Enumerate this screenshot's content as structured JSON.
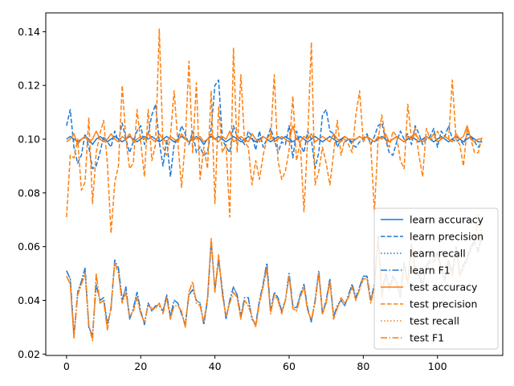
{
  "chart_data": {
    "type": "line",
    "title": "",
    "xlabel": "",
    "ylabel": "",
    "xlim": [
      -5.6,
      117.6
    ],
    "ylim": [
      0.0195,
      0.147
    ],
    "x_ticks": [
      0,
      20,
      40,
      60,
      80,
      100
    ],
    "y_ticks": [
      0.02,
      0.04,
      0.06,
      0.08,
      0.1,
      0.12,
      0.14
    ],
    "x_tick_labels": [
      "0",
      "20",
      "40",
      "60",
      "80",
      "100"
    ],
    "y_tick_labels": [
      "0.02",
      "0.04",
      "0.06",
      "0.08",
      "0.10",
      "0.12",
      "0.14"
    ],
    "grid": false,
    "legend_position": "lower-right",
    "legend": [
      {
        "label": "learn accuracy",
        "color": "#1f77d4",
        "dash": "solid"
      },
      {
        "label": "learn precision",
        "color": "#1f77d4",
        "dash": "dashed"
      },
      {
        "label": "learn recall",
        "color": "#1f77d4",
        "dash": "dotted"
      },
      {
        "label": "learn F1",
        "color": "#1f77d4",
        "dash": "dashdot"
      },
      {
        "label": "test accuracy",
        "color": "#ff7f0e",
        "dash": "solid"
      },
      {
        "label": "test precision",
        "color": "#ff7f0e",
        "dash": "dashed"
      },
      {
        "label": "test recall",
        "color": "#ff7f0e",
        "dash": "dotted"
      },
      {
        "label": "test F1",
        "color": "#ff7f0e",
        "dash": "dashdot"
      }
    ],
    "x": [
      0,
      1,
      2,
      3,
      4,
      5,
      6,
      7,
      8,
      9,
      10,
      11,
      12,
      13,
      14,
      15,
      16,
      17,
      18,
      19,
      20,
      21,
      22,
      23,
      24,
      25,
      26,
      27,
      28,
      29,
      30,
      31,
      32,
      33,
      34,
      35,
      36,
      37,
      38,
      39,
      40,
      41,
      42,
      43,
      44,
      45,
      46,
      47,
      48,
      49,
      50,
      51,
      52,
      53,
      54,
      55,
      56,
      57,
      58,
      59,
      60,
      61,
      62,
      63,
      64,
      65,
      66,
      67,
      68,
      69,
      70,
      71,
      72,
      73,
      74,
      75,
      76,
      77,
      78,
      79,
      80,
      81,
      82,
      83,
      84,
      85,
      86,
      87,
      88,
      89,
      90,
      91,
      92,
      93,
      94,
      95,
      96,
      97,
      98,
      99,
      100,
      101,
      102,
      103,
      104,
      105,
      106,
      107,
      108,
      109,
      110,
      111,
      112
    ],
    "series": [
      {
        "name": "learn accuracy",
        "color": "#1f77d4",
        "dash": "solid",
        "values": [
          0.1,
          0.101,
          0.1,
          0.099,
          0.1,
          0.101,
          0.1,
          0.098,
          0.1,
          0.101,
          0.1,
          0.099,
          0.1,
          0.101,
          0.1,
          0.099,
          0.1,
          0.101,
          0.1,
          0.099,
          0.1,
          0.101,
          0.1,
          0.101,
          0.1,
          0.099,
          0.1,
          0.101,
          0.1,
          0.099,
          0.1,
          0.101,
          0.1,
          0.099,
          0.1,
          0.101,
          0.1,
          0.098,
          0.1,
          0.101,
          0.1,
          0.101,
          0.1,
          0.099,
          0.1,
          0.101,
          0.1,
          0.099,
          0.1,
          0.101,
          0.1,
          0.099,
          0.1,
          0.101,
          0.1,
          0.099,
          0.1,
          0.101,
          0.1,
          0.101,
          0.1,
          0.099,
          0.1,
          0.101,
          0.1,
          0.099,
          0.1,
          0.101,
          0.1,
          0.099,
          0.1,
          0.101,
          0.1,
          0.099,
          0.1,
          0.101,
          0.1,
          0.099,
          0.1,
          0.101,
          0.1,
          0.101,
          0.1,
          0.099,
          0.1,
          0.101,
          0.1,
          0.099,
          0.1,
          0.101,
          0.1,
          0.099,
          0.1,
          0.101,
          0.1,
          0.099,
          0.1,
          0.101,
          0.1,
          0.099,
          0.1,
          0.101,
          0.1,
          0.099,
          0.1,
          0.101,
          0.1,
          0.099,
          0.1,
          0.101,
          0.1,
          0.099,
          0.099
        ]
      },
      {
        "name": "learn precision",
        "color": "#1f77d4",
        "dash": "dashed",
        "values": [
          0.105,
          0.111,
          0.097,
          0.091,
          0.094,
          0.102,
          0.097,
          0.089,
          0.09,
          0.095,
          0.101,
          0.099,
          0.097,
          0.103,
          0.099,
          0.106,
          0.1,
          0.095,
          0.099,
          0.103,
          0.105,
          0.098,
          0.102,
          0.109,
          0.113,
          0.099,
          0.09,
          0.1,
          0.086,
          0.098,
          0.1,
          0.105,
          0.102,
          0.098,
          0.103,
          0.095,
          0.097,
          0.094,
          0.095,
          0.104,
          0.12,
          0.122,
          0.1,
          0.097,
          0.095,
          0.105,
          0.101,
          0.1,
          0.098,
          0.103,
          0.101,
          0.096,
          0.103,
          0.097,
          0.1,
          0.104,
          0.1,
          0.095,
          0.099,
          0.098,
          0.105,
          0.093,
          0.103,
          0.098,
          0.095,
          0.103,
          0.1,
          0.089,
          0.095,
          0.109,
          0.111,
          0.103,
          0.102,
          0.097,
          0.1,
          0.099,
          0.1,
          0.098,
          0.097,
          0.099,
          0.1,
          0.102,
          0.098,
          0.101,
          0.105,
          0.106,
          0.1,
          0.095,
          0.094,
          0.099,
          0.103,
          0.1,
          0.102,
          0.098,
          0.105,
          0.102,
          0.098,
          0.1,
          0.101,
          0.104,
          0.097,
          0.103,
          0.101,
          0.105,
          0.1,
          0.099,
          0.1,
          0.098,
          0.102,
          0.101,
          0.099,
          0.097,
          0.099
        ]
      },
      {
        "name": "learn recall",
        "color": "#1f77d4",
        "dash": "dotted",
        "values": [
          0.051,
          0.048,
          0.027,
          0.043,
          0.047,
          0.052,
          0.03,
          0.027,
          0.046,
          0.04,
          0.041,
          0.031,
          0.037,
          0.055,
          0.052,
          0.04,
          0.045,
          0.033,
          0.037,
          0.043,
          0.036,
          0.031,
          0.039,
          0.036,
          0.038,
          0.038,
          0.036,
          0.042,
          0.034,
          0.04,
          0.039,
          0.035,
          0.031,
          0.042,
          0.044,
          0.04,
          0.039,
          0.031,
          0.04,
          0.062,
          0.044,
          0.055,
          0.044,
          0.033,
          0.04,
          0.045,
          0.042,
          0.034,
          0.041,
          0.041,
          0.033,
          0.031,
          0.04,
          0.046,
          0.054,
          0.036,
          0.043,
          0.041,
          0.036,
          0.04,
          0.05,
          0.038,
          0.037,
          0.042,
          0.046,
          0.037,
          0.032,
          0.04,
          0.051,
          0.035,
          0.04,
          0.048,
          0.034,
          0.038,
          0.04,
          0.038,
          0.042,
          0.046,
          0.041,
          0.045,
          0.049,
          0.049,
          0.04,
          0.046,
          0.064,
          0.042,
          0.05,
          0.045,
          0.049,
          0.047,
          0.042,
          0.054,
          0.047,
          0.061,
          0.051,
          0.05,
          0.046,
          0.053,
          0.055,
          0.055,
          0.058,
          0.052,
          0.048,
          0.055,
          0.05,
          0.06,
          0.05,
          0.053,
          0.056,
          0.06,
          0.062,
          0.058,
          0.065
        ]
      },
      {
        "name": "learn F1",
        "color": "#1f77d4",
        "dash": "dashdot",
        "values": [
          0.051,
          0.048,
          0.027,
          0.043,
          0.047,
          0.052,
          0.03,
          0.027,
          0.046,
          0.04,
          0.041,
          0.031,
          0.037,
          0.055,
          0.052,
          0.04,
          0.045,
          0.033,
          0.037,
          0.043,
          0.036,
          0.031,
          0.039,
          0.036,
          0.038,
          0.038,
          0.036,
          0.042,
          0.034,
          0.04,
          0.039,
          0.035,
          0.031,
          0.042,
          0.044,
          0.04,
          0.039,
          0.031,
          0.04,
          0.062,
          0.044,
          0.055,
          0.044,
          0.033,
          0.04,
          0.045,
          0.042,
          0.034,
          0.041,
          0.041,
          0.033,
          0.031,
          0.04,
          0.046,
          0.054,
          0.036,
          0.043,
          0.041,
          0.036,
          0.04,
          0.05,
          0.038,
          0.037,
          0.042,
          0.046,
          0.037,
          0.032,
          0.04,
          0.051,
          0.035,
          0.04,
          0.048,
          0.034,
          0.038,
          0.04,
          0.038,
          0.042,
          0.046,
          0.041,
          0.045,
          0.049,
          0.049,
          0.04,
          0.046,
          0.064,
          0.042,
          0.05,
          0.045,
          0.049,
          0.047,
          0.042,
          0.054,
          0.047,
          0.061,
          0.051,
          0.05,
          0.046,
          0.053,
          0.055,
          0.055,
          0.058,
          0.052,
          0.048,
          0.055,
          0.05,
          0.06,
          0.05,
          0.053,
          0.056,
          0.06,
          0.062,
          0.058,
          0.065
        ]
      },
      {
        "name": "test accuracy",
        "color": "#ff7f0e",
        "dash": "solid",
        "values": [
          0.099,
          0.1,
          0.102,
          0.098,
          0.1,
          0.101,
          0.099,
          0.1,
          0.103,
          0.1,
          0.099,
          0.1,
          0.102,
          0.1,
          0.099,
          0.101,
          0.1,
          0.102,
          0.099,
          0.1,
          0.101,
          0.1,
          0.102,
          0.1,
          0.099,
          0.102,
          0.1,
          0.099,
          0.101,
          0.1,
          0.099,
          0.102,
          0.1,
          0.099,
          0.101,
          0.1,
          0.101,
          0.099,
          0.1,
          0.102,
          0.1,
          0.099,
          0.101,
          0.1,
          0.103,
          0.099,
          0.1,
          0.101,
          0.1,
          0.099,
          0.102,
          0.1,
          0.099,
          0.101,
          0.1,
          0.102,
          0.099,
          0.1,
          0.101,
          0.1,
          0.099,
          0.105,
          0.1,
          0.099,
          0.101,
          0.1,
          0.102,
          0.099,
          0.1,
          0.101,
          0.1,
          0.099,
          0.102,
          0.1,
          0.099,
          0.101,
          0.1,
          0.1,
          0.1,
          0.101,
          0.1,
          0.101,
          0.1,
          0.099,
          0.101,
          0.1,
          0.102,
          0.099,
          0.1,
          0.101,
          0.1,
          0.099,
          0.101,
          0.1,
          0.102,
          0.1,
          0.099,
          0.101,
          0.1,
          0.102,
          0.099,
          0.1,
          0.101,
          0.1,
          0.099,
          0.102,
          0.1,
          0.101,
          0.105,
          0.1,
          0.099,
          0.1,
          0.1
        ]
      },
      {
        "name": "test precision",
        "color": "#ff7f0e",
        "dash": "dashed",
        "values": [
          0.071,
          0.094,
          0.093,
          0.1,
          0.081,
          0.084,
          0.108,
          0.076,
          0.095,
          0.102,
          0.107,
          0.091,
          0.065,
          0.084,
          0.09,
          0.12,
          0.1,
          0.089,
          0.091,
          0.111,
          0.099,
          0.086,
          0.111,
          0.092,
          0.098,
          0.141,
          0.097,
          0.094,
          0.101,
          0.118,
          0.099,
          0.082,
          0.099,
          0.129,
          0.095,
          0.121,
          0.085,
          0.097,
          0.089,
          0.118,
          0.076,
          0.112,
          0.095,
          0.098,
          0.071,
          0.134,
          0.095,
          0.124,
          0.099,
          0.097,
          0.083,
          0.092,
          0.085,
          0.094,
          0.1,
          0.1,
          0.124,
          0.092,
          0.085,
          0.088,
          0.096,
          0.116,
          0.092,
          0.099,
          0.073,
          0.1,
          0.136,
          0.083,
          0.088,
          0.097,
          0.091,
          0.083,
          0.095,
          0.107,
          0.094,
          0.1,
          0.098,
          0.095,
          0.109,
          0.118,
          0.099,
          0.101,
          0.098,
          0.073,
          0.1,
          0.109,
          0.1,
          0.097,
          0.103,
          0.101,
          0.092,
          0.089,
          0.113,
          0.1,
          0.104,
          0.094,
          0.086,
          0.104,
          0.1,
          0.1,
          0.103,
          0.1,
          0.101,
          0.1,
          0.122,
          0.1,
          0.098,
          0.09,
          0.104,
          0.1,
          0.095,
          0.095,
          0.101
        ]
      },
      {
        "name": "test recall",
        "color": "#ff7f0e",
        "dash": "dotted",
        "values": [
          0.049,
          0.046,
          0.026,
          0.042,
          0.046,
          0.05,
          0.031,
          0.025,
          0.05,
          0.039,
          0.04,
          0.029,
          0.038,
          0.054,
          0.05,
          0.039,
          0.043,
          0.034,
          0.036,
          0.041,
          0.035,
          0.032,
          0.038,
          0.037,
          0.037,
          0.039,
          0.035,
          0.041,
          0.033,
          0.038,
          0.038,
          0.036,
          0.03,
          0.043,
          0.047,
          0.039,
          0.038,
          0.032,
          0.041,
          0.063,
          0.043,
          0.057,
          0.042,
          0.034,
          0.039,
          0.043,
          0.041,
          0.033,
          0.04,
          0.038,
          0.034,
          0.03,
          0.039,
          0.045,
          0.052,
          0.035,
          0.042,
          0.04,
          0.035,
          0.04,
          0.049,
          0.037,
          0.036,
          0.041,
          0.045,
          0.036,
          0.033,
          0.039,
          0.05,
          0.035,
          0.039,
          0.047,
          0.033,
          0.037,
          0.041,
          0.039,
          0.041,
          0.045,
          0.04,
          0.044,
          0.048,
          0.048,
          0.039,
          0.045,
          0.063,
          0.041,
          0.049,
          0.044,
          0.048,
          0.046,
          0.041,
          0.053,
          0.046,
          0.06,
          0.05,
          0.049,
          0.045,
          0.052,
          0.054,
          0.054,
          0.057,
          0.051,
          0.047,
          0.054,
          0.049,
          0.059,
          0.049,
          0.052,
          0.055,
          0.059,
          0.061,
          0.072,
          0.064
        ]
      },
      {
        "name": "test F1",
        "color": "#ff7f0e",
        "dash": "dashdot",
        "values": [
          0.049,
          0.046,
          0.026,
          0.042,
          0.046,
          0.05,
          0.031,
          0.025,
          0.05,
          0.039,
          0.04,
          0.029,
          0.038,
          0.054,
          0.05,
          0.039,
          0.043,
          0.034,
          0.036,
          0.041,
          0.035,
          0.032,
          0.038,
          0.037,
          0.037,
          0.039,
          0.035,
          0.041,
          0.033,
          0.038,
          0.038,
          0.036,
          0.03,
          0.043,
          0.047,
          0.039,
          0.038,
          0.032,
          0.041,
          0.063,
          0.043,
          0.057,
          0.042,
          0.034,
          0.039,
          0.043,
          0.041,
          0.033,
          0.04,
          0.038,
          0.034,
          0.03,
          0.039,
          0.045,
          0.052,
          0.035,
          0.042,
          0.04,
          0.035,
          0.04,
          0.049,
          0.037,
          0.036,
          0.041,
          0.045,
          0.036,
          0.033,
          0.039,
          0.05,
          0.035,
          0.039,
          0.047,
          0.033,
          0.037,
          0.041,
          0.039,
          0.041,
          0.045,
          0.04,
          0.044,
          0.048,
          0.048,
          0.039,
          0.045,
          0.063,
          0.041,
          0.049,
          0.044,
          0.048,
          0.046,
          0.041,
          0.053,
          0.046,
          0.06,
          0.05,
          0.049,
          0.045,
          0.052,
          0.054,
          0.054,
          0.057,
          0.051,
          0.047,
          0.054,
          0.049,
          0.059,
          0.049,
          0.052,
          0.055,
          0.059,
          0.061,
          0.072,
          0.064
        ]
      }
    ]
  }
}
